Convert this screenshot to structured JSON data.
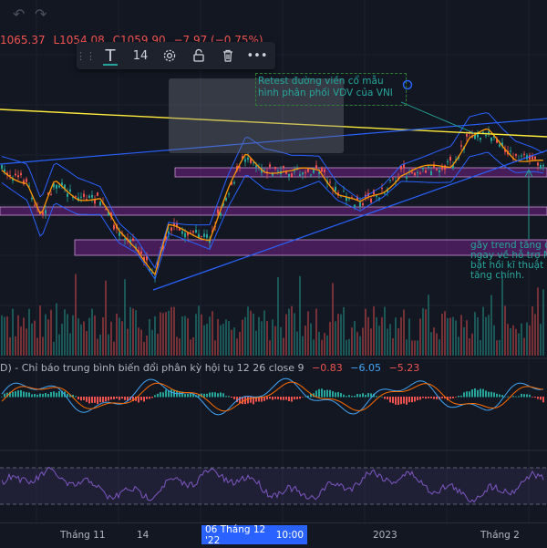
{
  "header": {
    "undo_icon": "undo-icon",
    "redo_icon": "redo-icon",
    "ohlc": {
      "high": "1065.37",
      "low": "L1054.08",
      "close": "C1059.90",
      "change": "−7.97 (−0.75%)"
    }
  },
  "toolbar": {
    "drag_icon": "grip-icon",
    "text_tool_icon": "text-T-icon",
    "font_size": "14",
    "settings_icon": "gear-icon",
    "lock_icon": "unlock-icon",
    "delete_icon": "trash-icon",
    "more_icon": "more-dots-icon"
  },
  "annotations": {
    "retest_note": "Retest đường viền cổ mẫu hình phân phối VDV của VNI",
    "trend_note": "gãy trend tăng c\nngay về hỗ trợ M\nbật hồi kĩ thuật\ntăng chính."
  },
  "macd": {
    "label": "D) - Chỉ báo trung bình biến đổi phân kỳ hội tụ 12 26 close 9",
    "histogram": "−0.83",
    "macd": "−6.05",
    "signal": "−5.23"
  },
  "xaxis": {
    "ticks": [
      "Tháng 11",
      "14",
      "2023",
      "Tháng 2"
    ],
    "cursor_date": "06 Tháng 12 '22",
    "cursor_time": "10:00"
  },
  "colors": {
    "background": "#131722",
    "up": "#26a69a",
    "down": "#ef5350",
    "bollinger": "#2962ff",
    "ma": "#ff9800",
    "trendline_yellow": "#ffeb3b",
    "zone": "#9c27b0",
    "rsi": "#7e57c2",
    "macd_line": "#42a5f5",
    "signal_line": "#ff6d00",
    "accent": "#2962ff"
  },
  "chart_data": {
    "type": "line",
    "title": "",
    "price_last_visible_high": 1065.37,
    "price_last_visible_low": 1054.08,
    "x_ticks": [
      "Tháng 11",
      "14",
      "2023",
      "Tháng 2"
    ],
    "highlighted_date": "06 Tháng 12 '22 10:00",
    "macd_params": "12 26 close 9",
    "series": [
      {
        "name": "MACD histogram",
        "values": [
          -0.83
        ]
      },
      {
        "name": "MACD",
        "values": [
          -6.05
        ]
      },
      {
        "name": "Signal",
        "values": [
          -5.23
        ]
      }
    ]
  }
}
